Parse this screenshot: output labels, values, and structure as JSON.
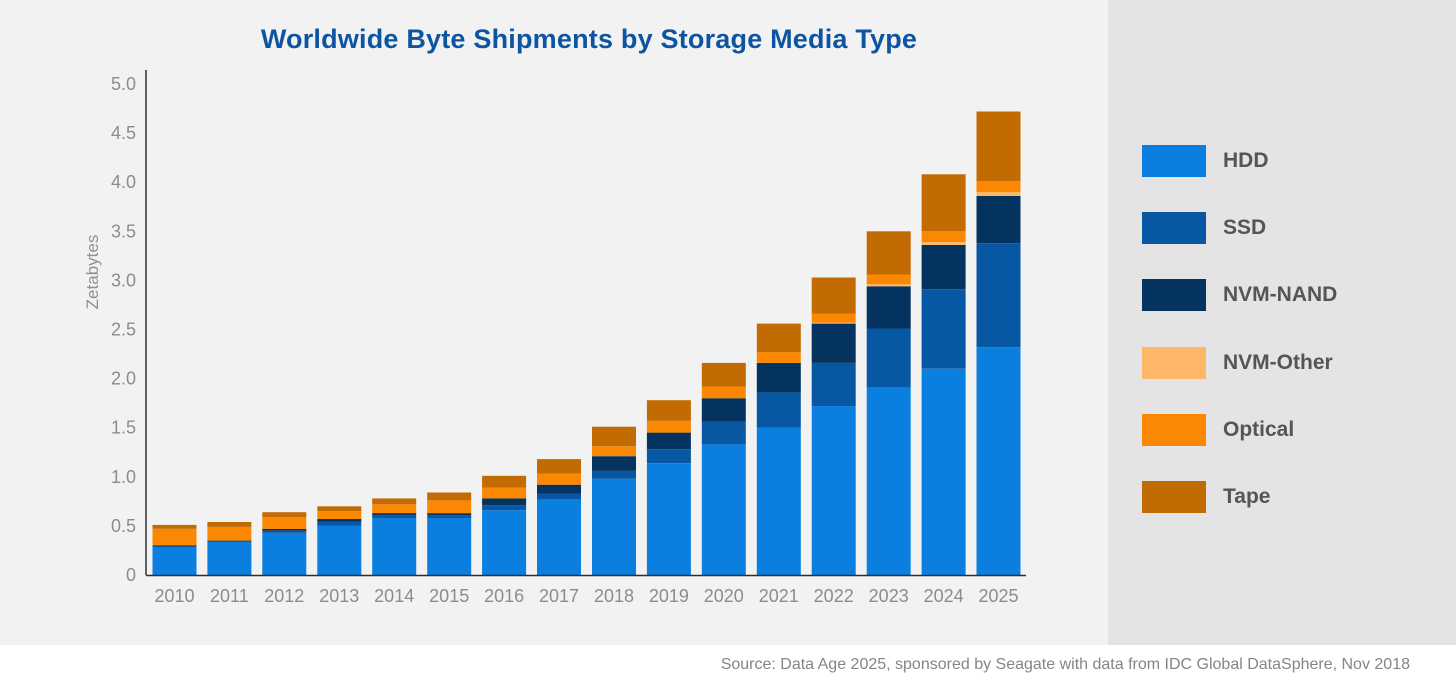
{
  "chart_data": {
    "type": "bar",
    "stacked": true,
    "title": "Worldwide Byte Shipments by Storage Media Type",
    "xlabel": "",
    "ylabel": "Zetabytes",
    "ylim": [
      0,
      5.0
    ],
    "yticks": [
      {
        "value": 0,
        "label": "0"
      },
      {
        "value": 0.5,
        "label": "0.5"
      },
      {
        "value": 1.0,
        "label": "1.0"
      },
      {
        "value": 1.5,
        "label": "1.5"
      },
      {
        "value": 2.0,
        "label": "2.0"
      },
      {
        "value": 2.5,
        "label": "2.5"
      },
      {
        "value": 3.0,
        "label": "3.0"
      },
      {
        "value": 3.5,
        "label": "3.5"
      },
      {
        "value": 4.0,
        "label": "4.0"
      },
      {
        "value": 4.5,
        "label": "4.5"
      },
      {
        "value": 5.0,
        "label": "5.0"
      }
    ],
    "categories": [
      "2010",
      "2011",
      "2012",
      "2013",
      "2014",
      "2015",
      "2016",
      "2017",
      "2018",
      "2019",
      "2020",
      "2021",
      "2022",
      "2023",
      "2024",
      "2025"
    ],
    "series": [
      {
        "name": "HDD",
        "color": "#0a7fdf",
        "values": [
          0.29,
          0.34,
          0.43,
          0.5,
          0.58,
          0.58,
          0.66,
          0.77,
          0.98,
          1.14,
          1.33,
          1.5,
          1.72,
          1.91,
          2.1,
          2.32
        ]
      },
      {
        "name": "SSD",
        "color": "#0757a2",
        "values": [
          0.0,
          0.0,
          0.02,
          0.04,
          0.03,
          0.03,
          0.05,
          0.06,
          0.08,
          0.14,
          0.23,
          0.36,
          0.44,
          0.6,
          0.81,
          1.06
        ]
      },
      {
        "name": "NVM-NAND",
        "color": "#04335f",
        "values": [
          0.01,
          0.01,
          0.02,
          0.03,
          0.02,
          0.02,
          0.07,
          0.09,
          0.15,
          0.17,
          0.24,
          0.3,
          0.4,
          0.43,
          0.45,
          0.48
        ]
      },
      {
        "name": "NVM-Other",
        "color": "#fdb766",
        "values": [
          0.0,
          0.0,
          0.0,
          0.0,
          0.0,
          0.0,
          0.0,
          0.0,
          0.0,
          0.0,
          0.0,
          0.0,
          0.01,
          0.02,
          0.03,
          0.04
        ]
      },
      {
        "name": "Optical",
        "color": "#fb8702",
        "values": [
          0.17,
          0.14,
          0.12,
          0.08,
          0.09,
          0.13,
          0.11,
          0.11,
          0.1,
          0.12,
          0.12,
          0.11,
          0.09,
          0.1,
          0.11,
          0.11
        ]
      },
      {
        "name": "Tape",
        "color": "#c36b03",
        "values": [
          0.04,
          0.05,
          0.05,
          0.05,
          0.06,
          0.08,
          0.12,
          0.15,
          0.2,
          0.21,
          0.24,
          0.29,
          0.37,
          0.44,
          0.58,
          0.71
        ]
      }
    ],
    "legend_position": "right"
  },
  "source": "Source: Data Age 2025, sponsored by Seagate with data from IDC Global DataSphere, Nov 2018"
}
